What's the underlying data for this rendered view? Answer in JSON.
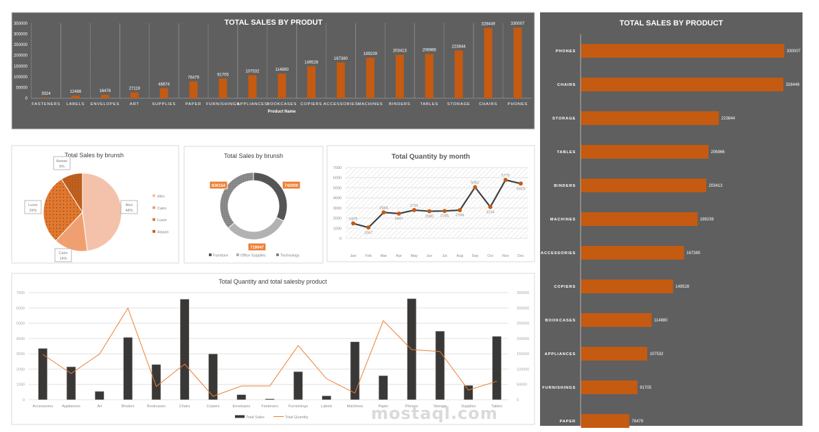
{
  "colors": {
    "panel_dark": "#5f5f5f",
    "orange": "#c55a11",
    "bar_dark": "#3a3836",
    "line_orange": "#ed7d31",
    "line_dark": "#404040"
  },
  "watermark": "mostaql.com",
  "chart_data": [
    {
      "id": "top_bar",
      "type": "bar",
      "title": "TOTAL SALES BY PRODUT",
      "xlabel": "Product Name",
      "ylim": [
        0,
        350000
      ],
      "yticks": [
        0,
        50000,
        100000,
        150000,
        200000,
        250000,
        300000,
        350000
      ],
      "categories": [
        "FASTENERS",
        "LABELS",
        "ENVELOPES",
        "ART",
        "SUPPLIES",
        "PAPER",
        "FURNISHINGS",
        "APPLIANCES",
        "BOOKCASES",
        "COPIERS",
        "ACCESSORIES",
        "MACHINES",
        "BINDERS",
        "TABLES",
        "STORAGE",
        "CHAIRS",
        "PHONES"
      ],
      "values": [
        3024,
        12486,
        16476,
        27119,
        46674,
        78479,
        91705,
        107532,
        114880,
        149528,
        167380,
        189239,
        203413,
        206966,
        223844,
        328449,
        330007
      ]
    },
    {
      "id": "right_bar",
      "type": "bar",
      "orientation": "horizontal",
      "title": "TOTAL SALES BY PRODUCT",
      "categories": [
        "PHONES",
        "CHAIRS",
        "STORAGE",
        "TABLES",
        "BINDERS",
        "MACHINES",
        "ACCESSORIES",
        "COPIERS",
        "BOOKCASES",
        "APPLIANCES",
        "FURNISHINGS",
        "PAPER"
      ],
      "values": [
        330007,
        328449,
        223844,
        206966,
        203413,
        189239,
        167380,
        149528,
        114880,
        107532,
        91705,
        78479
      ]
    },
    {
      "id": "pie",
      "type": "pie",
      "title": "Total Sales by brunsh",
      "legend": "right",
      "labels": [
        "Alex",
        "Cairo",
        "Luxor",
        "Aswan"
      ],
      "values": [
        48,
        14,
        29,
        9
      ],
      "value_labels": [
        "48%",
        "14%",
        "29%",
        "9%"
      ],
      "colors": [
        "#f4c2ab",
        "#f0a070",
        "#e07830",
        "#c0601f"
      ]
    },
    {
      "id": "donut",
      "type": "pie",
      "style": "donut",
      "title": "Total Sales by brunsh",
      "legend": "bottom",
      "labels": [
        "Furniture",
        "Office Supplies",
        "Technology"
      ],
      "values": [
        742000,
        719047,
        836154
      ],
      "colors": [
        "#555555",
        "#b2b2b2",
        "#858585"
      ]
    },
    {
      "id": "line",
      "type": "line",
      "title": "Total Quantity by month",
      "ylim": [
        0,
        7000
      ],
      "yticks": [
        0,
        1000,
        2000,
        3000,
        4000,
        5000,
        6000,
        7000
      ],
      "categories": [
        "Jan",
        "Feb",
        "Mar",
        "Apr",
        "May",
        "Jun",
        "Jul",
        "Aug",
        "Sep",
        "Oct",
        "Nov",
        "Dec"
      ],
      "values": [
        1475,
        1067,
        2564,
        2447,
        2791,
        2680,
        2705,
        2784,
        5062,
        3104,
        5775,
        5419
      ]
    },
    {
      "id": "combo",
      "type": "bar",
      "title": "Total Quantity and total salesby product",
      "legend": "bottom",
      "categories": [
        "Accessories",
        "Appliances",
        "Art",
        "Binders",
        "Bookcases",
        "Chairs",
        "Copiers",
        "Envelopes",
        "Fasteners",
        "Furnishings",
        "Labels",
        "Machines",
        "Paper",
        "Phones",
        "Storage",
        "Supplies",
        "Tables"
      ],
      "ylim_left": [
        0,
        7000
      ],
      "yticks_left": [
        0,
        1000,
        2000,
        3000,
        4000,
        5000,
        6000,
        7000
      ],
      "ylim_right": [
        0,
        350000
      ],
      "yticks_right": [
        0,
        50000,
        100000,
        150000,
        200000,
        250000,
        300000,
        350000
      ],
      "series": [
        {
          "name": "Total Sales",
          "type": "bar",
          "axis": "right",
          "values": [
            167380,
            107532,
            27119,
            203413,
            114880,
            328449,
            149528,
            16476,
            3024,
            91705,
            12486,
            189239,
            78479,
            330007,
            223844,
            46674,
            206966
          ]
        },
        {
          "name": "Total Quantity",
          "type": "line",
          "axis": "left",
          "values": [
            2955,
            1716,
            2985,
            5985,
            866,
            2328,
            224,
            896,
            896,
            3537,
            1373,
            433,
            5164,
            3269,
            3149,
            627,
            1209
          ]
        }
      ]
    }
  ]
}
